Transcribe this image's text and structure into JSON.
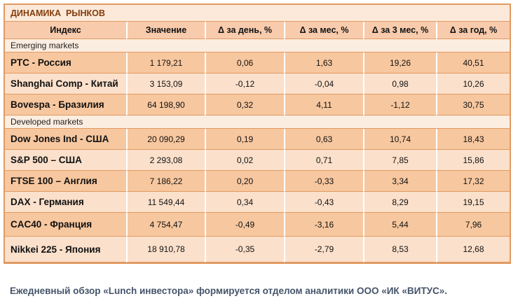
{
  "title": "ДИНАМИКА  РЫНКОВ",
  "columns": [
    "Индекс",
    "Значение",
    "Δ за день, %",
    "Δ за мес, %",
    "Δ за 3 мес, %",
    "Δ за год, %"
  ],
  "sections": [
    {
      "label": "Emerging markets",
      "rows": [
        {
          "index": "РТС - Россия",
          "value": "1 179,21",
          "day": "0,06",
          "month": "1,63",
          "three_month": "19,26",
          "year": "40,51"
        },
        {
          "index": "Shanghai Comp - Китай",
          "value": "3 153,09",
          "day": "-0,12",
          "month": "-0,04",
          "three_month": "0,98",
          "year": "10,26"
        },
        {
          "index": "Bovespa - Бразилия",
          "value": "64 198,90",
          "day": "0,32",
          "month": "4,11",
          "three_month": "-1,12",
          "year": "30,75"
        }
      ]
    },
    {
      "label": "Developed markets",
      "rows": [
        {
          "index": "Dow Jones Ind - США",
          "value": "20 090,29",
          "day": "0,19",
          "month": "0,63",
          "three_month": "10,74",
          "year": "18,43"
        },
        {
          "index": "S&P 500 – США",
          "value": "2 293,08",
          "day": "0,02",
          "month": "0,71",
          "three_month": "7,85",
          "year": "15,86"
        },
        {
          "index": "FTSE 100 – Англия",
          "value": "7 186,22",
          "day": "0,20",
          "month": "-0,33",
          "three_month": "3,34",
          "year": "17,32"
        },
        {
          "index": "DAX - Германия",
          "value": "11 549,44",
          "day": "0,34",
          "month": "-0,43",
          "three_month": "8,29",
          "year": "19,15"
        },
        {
          "index": "CAC40 - Франция",
          "value": "4 754,47",
          "day": "-0,49",
          "month": "-3,16",
          "three_month": "5,44",
          "year": "7,96"
        },
        {
          "index": "Nikkei 225 - Япония",
          "value": "18 910,78",
          "day": "-0,35",
          "month": "-2,79",
          "three_month": "8,53",
          "year": "12,68"
        }
      ]
    }
  ],
  "footer": "Ежедневный обзор «Lunch инвестора» формируется отделом аналитики ООО «ИК «ВИТУС».",
  "colors": {
    "table_border": "#e09a62",
    "title_background": "#fce9da",
    "title_text": "#843c0c",
    "header_background": "#f8cbad",
    "dark_row_background": "#f7c79f",
    "light_row_background": "#fbe0cb",
    "section_row_background": "#fcede1",
    "footer_text": "#44546a"
  }
}
